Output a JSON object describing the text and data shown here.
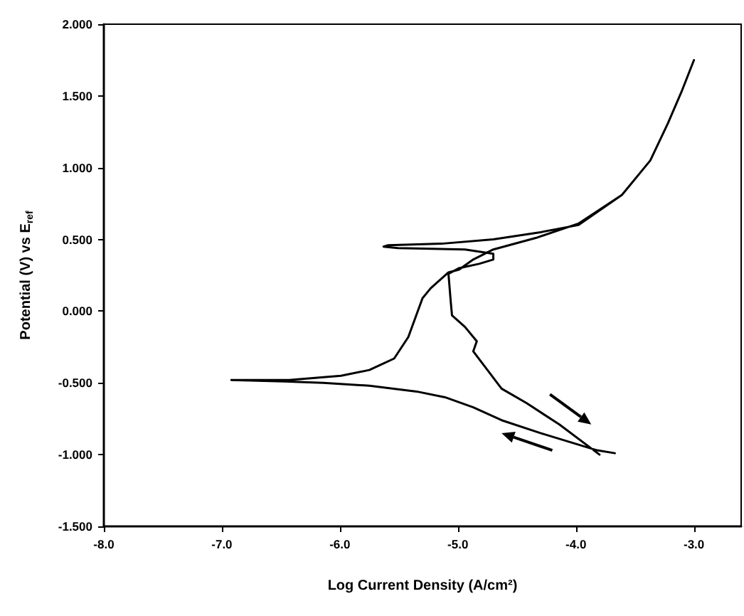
{
  "chart_data": {
    "type": "line",
    "xlabel": "Log Current Density (A/cm²)",
    "ylabel": "Potential (V) vs E$_{ref}$",
    "xlim": [
      -8,
      -2.6
    ],
    "ylim": [
      -1.5,
      2
    ],
    "xticks": [
      {
        "value": -8,
        "label": "-8.0"
      },
      {
        "value": -7,
        "label": "-7.0"
      },
      {
        "value": -6,
        "label": "-6.0"
      },
      {
        "value": -5,
        "label": "-5.0"
      },
      {
        "value": -4,
        "label": "-4.0"
      },
      {
        "value": -3,
        "label": "-3.0"
      }
    ],
    "yticks": [
      {
        "value": -1.5,
        "label": "-1.500"
      },
      {
        "value": -1,
        "label": "-1.000"
      },
      {
        "value": -0.5,
        "label": "-0.500"
      },
      {
        "value": 0,
        "label": "0.000"
      },
      {
        "value": 0.5,
        "label": "0.500"
      },
      {
        "value": 1,
        "label": "1.000"
      },
      {
        "value": 1.5,
        "label": "1.500"
      },
      {
        "value": 2,
        "label": "2.000"
      }
    ],
    "grid": false,
    "marker": "none",
    "line_style": "solid",
    "series": [
      {
        "color": "#000000",
        "x": [
          -3.67,
          -3.82,
          -4.3,
          -4.63,
          -4.87,
          -5.11,
          -5.35,
          -5.75,
          -6.14,
          -6.47,
          -6.92,
          -6.43,
          -5.99,
          -5.75,
          -5.54,
          -5.42,
          -5.3,
          -5.23,
          -5.08,
          -4.99,
          -4.87,
          -4.7,
          -4.34,
          -3.98,
          -3.61,
          -3.37,
          -3.22,
          -3.1,
          -3.0,
          -3.1,
          -3.22,
          -3.37,
          -3.61,
          -3.98,
          -4.3,
          -4.7,
          -5.14,
          -5.59,
          -5.63,
          -5.51,
          -4.94,
          -4.7,
          -4.7,
          -4.82,
          -4.99,
          -5.08,
          -5.06,
          -5.05,
          -4.94,
          -4.84,
          -4.87,
          -4.75,
          -4.63,
          -4.42,
          -4.14,
          -3.8
        ],
        "values": [
          -0.99,
          -0.97,
          -0.85,
          -0.76,
          -0.67,
          -0.6,
          -0.56,
          -0.52,
          -0.5,
          -0.49,
          -0.48,
          -0.48,
          -0.45,
          -0.41,
          -0.33,
          -0.18,
          0.09,
          0.16,
          0.27,
          0.29,
          0.36,
          0.43,
          0.51,
          0.61,
          0.81,
          1.05,
          1.31,
          1.54,
          1.75,
          1.54,
          1.31,
          1.05,
          0.81,
          0.6,
          0.55,
          0.5,
          0.47,
          0.46,
          0.45,
          0.44,
          0.43,
          0.4,
          0.36,
          0.33,
          0.3,
          0.26,
          0.06,
          -0.03,
          -0.11,
          -0.21,
          -0.28,
          -0.41,
          -0.54,
          -0.64,
          -0.79,
          -1.0
        ]
      }
    ]
  }
}
